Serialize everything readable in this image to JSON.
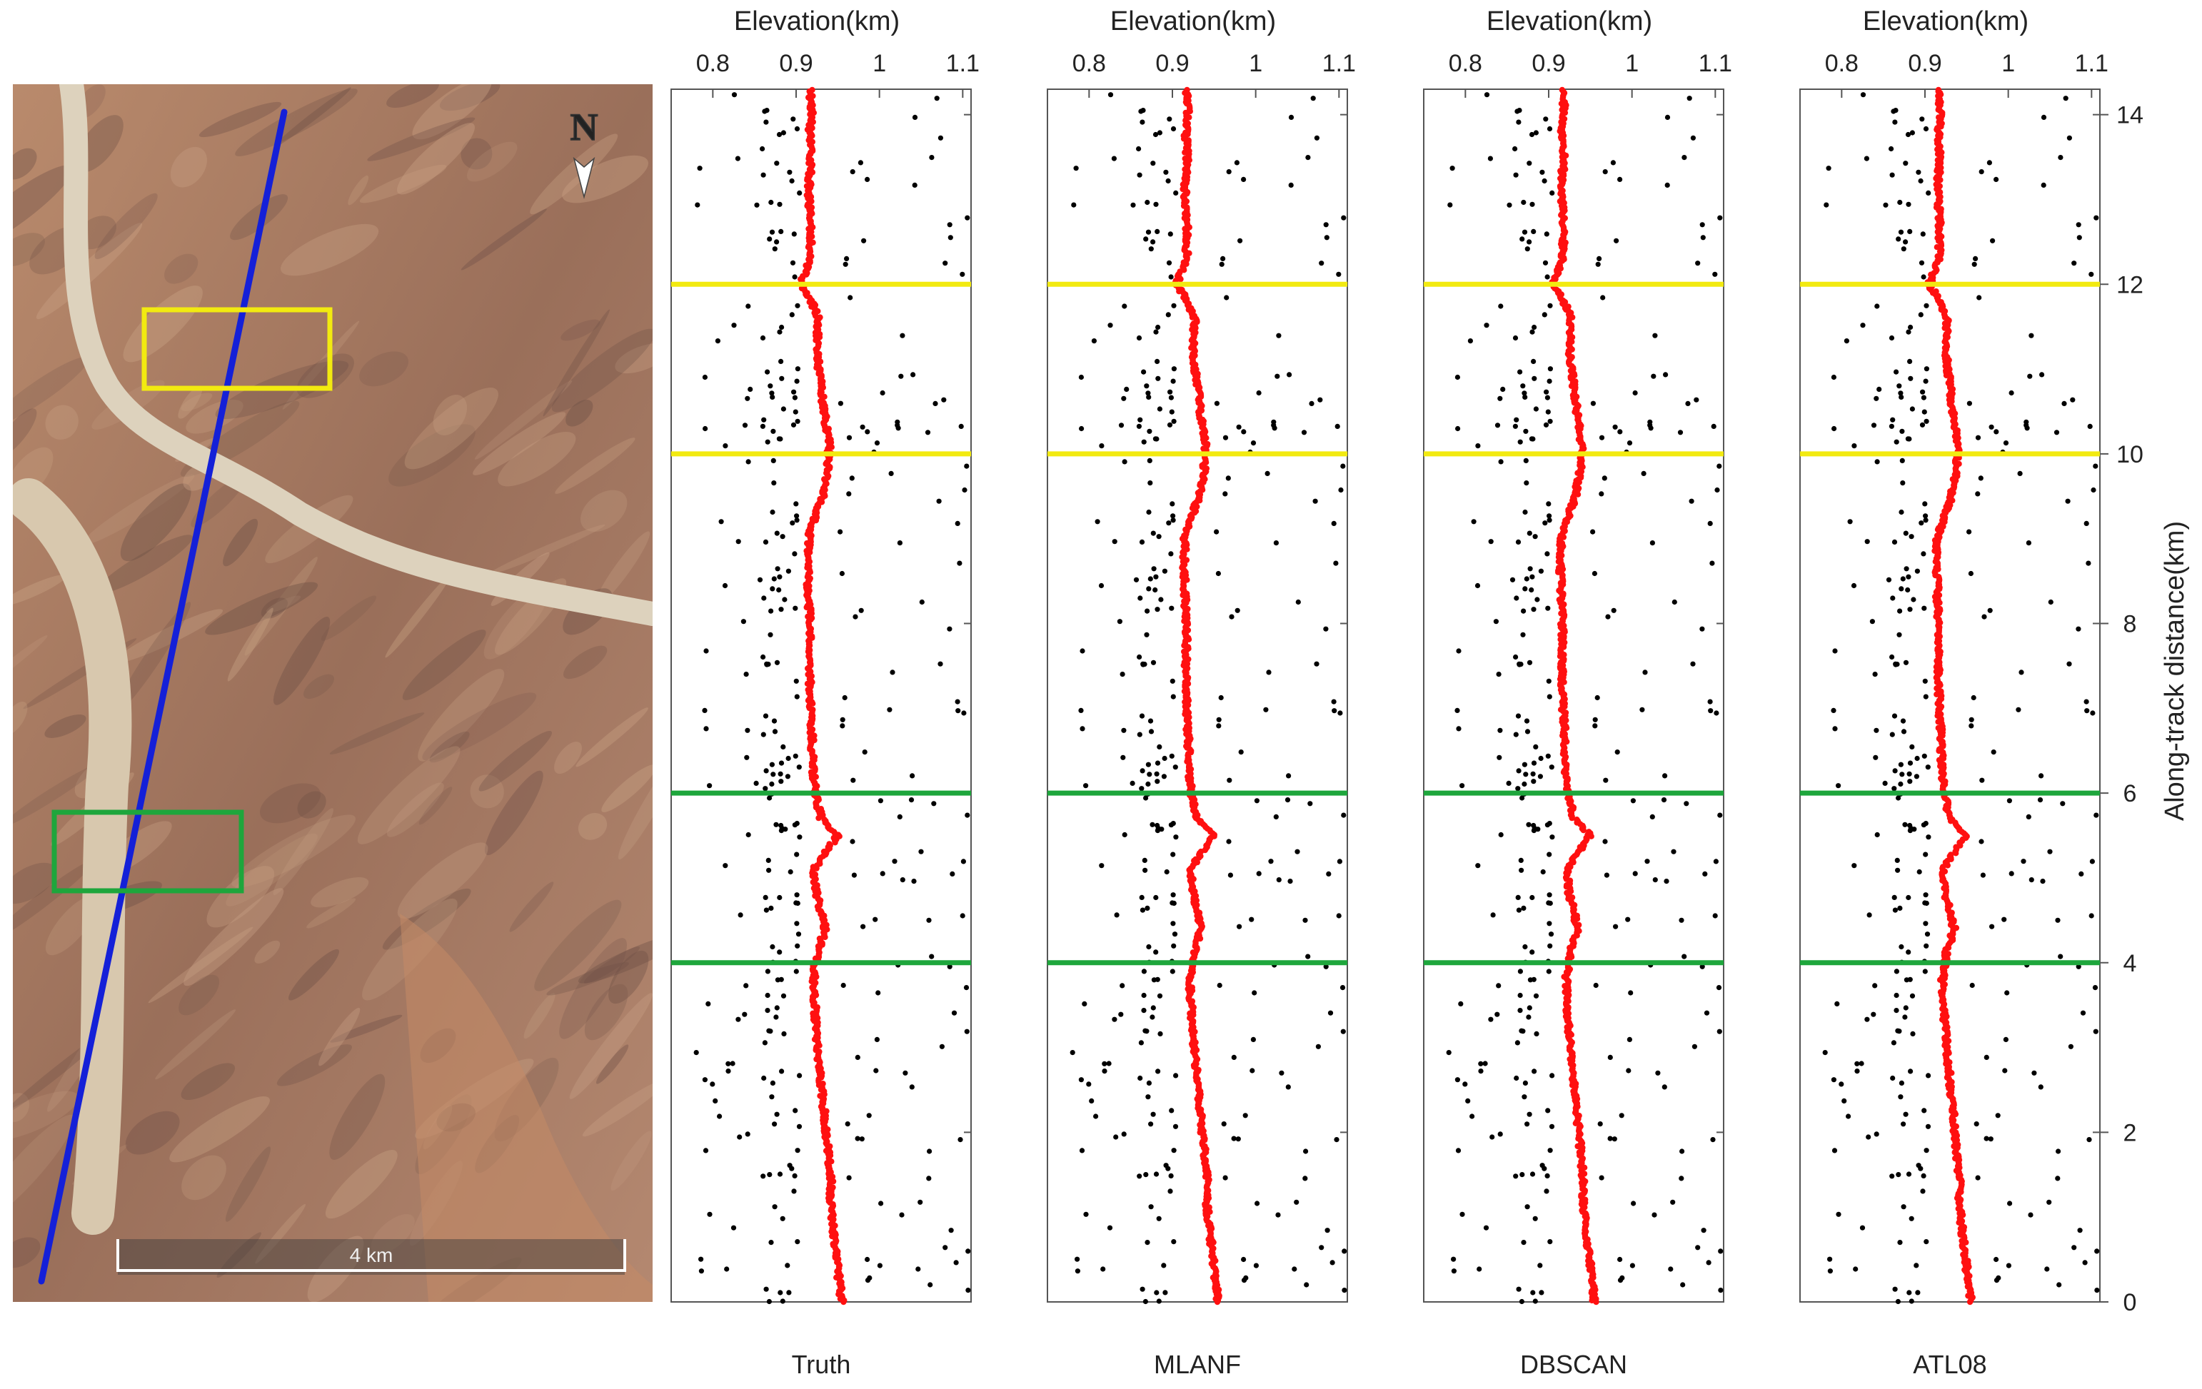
{
  "map": {
    "north_label": "N",
    "scale_bar_label": "4 km",
    "colors": {
      "track": "#1420d8",
      "box_yellow": "#f2ea10",
      "box_green": "#1ea63c",
      "terrain_light": "#c79a78",
      "terrain_dark": "#6e5046",
      "riverbed": "#ddd2bd"
    }
  },
  "chart_data": [
    {
      "type": "scatter",
      "panel_label": "Truth",
      "xlabel": "Elevation(km)",
      "ylabel": "Along-track distance(km)",
      "xlim": [
        0.75,
        1.11
      ],
      "ylim": [
        0,
        14.3
      ],
      "xticks": [
        "0.8",
        "0.9",
        "1",
        "1.1"
      ],
      "yticks": [
        "0",
        "2",
        "4",
        "6",
        "8",
        "10",
        "12",
        "14"
      ],
      "yellow_lines_km": [
        10,
        12
      ],
      "green_lines_km": [
        4,
        6
      ],
      "point_colors": {
        "noise": "#000000",
        "signal": "#ff1010"
      },
      "grid": false
    },
    {
      "type": "scatter",
      "panel_label": "MLANF",
      "xlabel": "Elevation(km)",
      "ylabel": "Along-track distance(km)",
      "xlim": [
        0.75,
        1.11
      ],
      "ylim": [
        0,
        14.3
      ],
      "xticks": [
        "0.8",
        "0.9",
        "1",
        "1.1"
      ],
      "yticks": [
        "0",
        "2",
        "4",
        "6",
        "8",
        "10",
        "12",
        "14"
      ],
      "yellow_lines_km": [
        10,
        12
      ],
      "green_lines_km": [
        4,
        6
      ],
      "point_colors": {
        "noise": "#000000",
        "signal": "#ff1010"
      },
      "grid": false
    },
    {
      "type": "scatter",
      "panel_label": "DBSCAN",
      "xlabel": "Elevation(km)",
      "ylabel": "Along-track distance(km)",
      "xlim": [
        0.75,
        1.11
      ],
      "ylim": [
        0,
        14.3
      ],
      "xticks": [
        "0.8",
        "0.9",
        "1",
        "1.1"
      ],
      "yticks": [
        "0",
        "2",
        "4",
        "6",
        "8",
        "10",
        "12",
        "14"
      ],
      "yellow_lines_km": [
        10,
        12
      ],
      "green_lines_km": [
        4,
        6
      ],
      "point_colors": {
        "noise": "#000000",
        "signal": "#ff1010"
      },
      "grid": false
    },
    {
      "type": "scatter",
      "panel_label": "ATL08",
      "xlabel": "Elevation(km)",
      "ylabel": "Along-track distance(km)",
      "xlim": [
        0.75,
        1.11
      ],
      "ylim": [
        0,
        14.3
      ],
      "xticks": [
        "0.8",
        "0.9",
        "1",
        "1.1"
      ],
      "yticks": [
        "0",
        "2",
        "4",
        "6",
        "8",
        "10",
        "12",
        "14"
      ],
      "yellow_lines_km": [
        10,
        12
      ],
      "green_lines_km": [
        4,
        6
      ],
      "point_colors": {
        "noise": "#000000",
        "signal": "#ff1010"
      },
      "grid": false
    }
  ],
  "ground_profile": {
    "distance_km": [
      0,
      0.3,
      0.6,
      0.9,
      1.2,
      1.4,
      1.8,
      2.2,
      2.6,
      3.0,
      3.4,
      3.8,
      4.1,
      4.4,
      4.8,
      5.1,
      5.3,
      5.5,
      5.7,
      6.0,
      6.3,
      6.7,
      7.1,
      7.5,
      7.9,
      8.3,
      8.7,
      9.0,
      9.2,
      9.5,
      9.8,
      10.1,
      10.4,
      10.8,
      11.2,
      11.6,
      11.8,
      12.0,
      12.3,
      12.7,
      13.1,
      13.5,
      13.8,
      14.0,
      14.3
    ],
    "elevation_km": [
      0.955,
      0.951,
      0.948,
      0.944,
      0.941,
      0.942,
      0.938,
      0.934,
      0.93,
      0.926,
      0.923,
      0.921,
      0.925,
      0.935,
      0.925,
      0.921,
      0.935,
      0.95,
      0.93,
      0.923,
      0.92,
      0.919,
      0.917,
      0.916,
      0.917,
      0.915,
      0.914,
      0.915,
      0.921,
      0.932,
      0.938,
      0.94,
      0.935,
      0.93,
      0.925,
      0.927,
      0.918,
      0.905,
      0.917,
      0.918,
      0.915,
      0.918,
      0.916,
      0.919,
      0.917
    ]
  }
}
